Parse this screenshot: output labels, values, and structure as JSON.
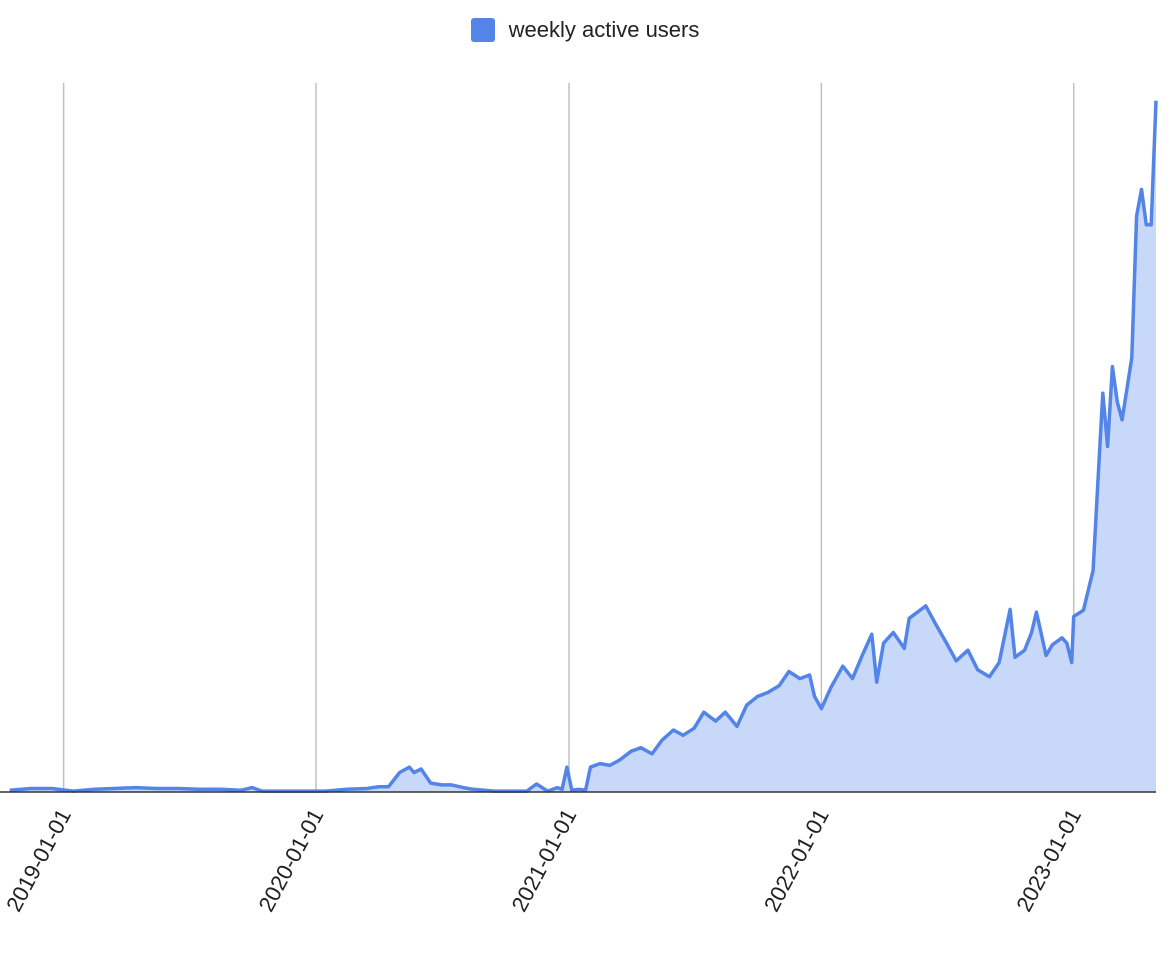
{
  "colors": {
    "line": "#5384e8",
    "fill": "#c8d8f8",
    "grid": "#c0c0c0",
    "baseline": "#333333"
  },
  "chart_data": {
    "type": "area",
    "legend": {
      "label": "weekly active users",
      "position": "top"
    },
    "xlabel": "",
    "ylabel": "",
    "x_ticks": [
      "2019-01-01",
      "2020-01-01",
      "2021-01-01",
      "2022-01-01",
      "2023-01-01"
    ],
    "grid": true,
    "y_axis_labels_visible": false,
    "series": [
      {
        "name": "weekly active users",
        "points": [
          [
            "2018-10-15",
            0.2
          ],
          [
            "2018-11-15",
            0.4
          ],
          [
            "2018-12-15",
            0.4
          ],
          [
            "2019-01-15",
            0.1
          ],
          [
            "2019-02-15",
            0.3
          ],
          [
            "2019-03-15",
            0.4
          ],
          [
            "2019-04-15",
            0.5
          ],
          [
            "2019-05-15",
            0.4
          ],
          [
            "2019-06-15",
            0.4
          ],
          [
            "2019-07-15",
            0.3
          ],
          [
            "2019-08-15",
            0.3
          ],
          [
            "2019-09-15",
            0.2
          ],
          [
            "2019-10-01",
            0.5
          ],
          [
            "2019-10-15",
            0.1
          ],
          [
            "2019-11-15",
            0.1
          ],
          [
            "2019-12-15",
            0.1
          ],
          [
            "2020-01-15",
            0.1
          ],
          [
            "2020-02-15",
            0.3
          ],
          [
            "2020-03-15",
            0.4
          ],
          [
            "2020-04-01",
            0.6
          ],
          [
            "2020-04-15",
            0.6
          ],
          [
            "2020-05-01",
            2.2
          ],
          [
            "2020-05-15",
            2.8
          ],
          [
            "2020-05-22",
            2.2
          ],
          [
            "2020-06-01",
            2.6
          ],
          [
            "2020-06-15",
            1.0
          ],
          [
            "2020-07-01",
            0.8
          ],
          [
            "2020-07-15",
            0.8
          ],
          [
            "2020-08-01",
            0.5
          ],
          [
            "2020-08-15",
            0.3
          ],
          [
            "2020-09-15",
            0.1
          ],
          [
            "2020-10-15",
            0.1
          ],
          [
            "2020-11-01",
            0.1
          ],
          [
            "2020-11-15",
            0.9
          ],
          [
            "2020-12-01",
            0.1
          ],
          [
            "2020-12-15",
            0.5
          ],
          [
            "2020-12-22",
            0.3
          ],
          [
            "2020-12-29",
            2.8
          ],
          [
            "2021-01-05",
            0.2
          ],
          [
            "2021-01-15",
            0.3
          ],
          [
            "2021-01-25",
            0.2
          ],
          [
            "2021-02-01",
            2.8
          ],
          [
            "2021-02-15",
            3.2
          ],
          [
            "2021-03-01",
            3.0
          ],
          [
            "2021-03-15",
            3.6
          ],
          [
            "2021-04-01",
            4.6
          ],
          [
            "2021-04-15",
            5.0
          ],
          [
            "2021-05-01",
            4.3
          ],
          [
            "2021-05-15",
            5.8
          ],
          [
            "2021-06-01",
            7.0
          ],
          [
            "2021-06-15",
            6.4
          ],
          [
            "2021-07-01",
            7.2
          ],
          [
            "2021-07-15",
            9.0
          ],
          [
            "2021-08-01",
            8.0
          ],
          [
            "2021-08-15",
            9.0
          ],
          [
            "2021-09-01",
            7.4
          ],
          [
            "2021-09-15",
            9.8
          ],
          [
            "2021-10-01",
            10.8
          ],
          [
            "2021-10-15",
            11.2
          ],
          [
            "2021-11-01",
            12.0
          ],
          [
            "2021-11-15",
            13.6
          ],
          [
            "2021-12-01",
            12.8
          ],
          [
            "2021-12-15",
            13.2
          ],
          [
            "2021-12-22",
            10.8
          ],
          [
            "2022-01-01",
            9.4
          ],
          [
            "2022-01-15",
            11.8
          ],
          [
            "2022-02-01",
            14.2
          ],
          [
            "2022-02-15",
            12.8
          ],
          [
            "2022-03-01",
            15.4
          ],
          [
            "2022-03-15",
            17.8
          ],
          [
            "2022-03-22",
            12.4
          ],
          [
            "2022-04-01",
            16.8
          ],
          [
            "2022-04-15",
            18.0
          ],
          [
            "2022-05-01",
            16.2
          ],
          [
            "2022-05-08",
            19.6
          ],
          [
            "2022-06-01",
            21.0
          ],
          [
            "2022-06-15",
            19.0
          ],
          [
            "2022-07-01",
            16.8
          ],
          [
            "2022-07-15",
            14.8
          ],
          [
            "2022-08-01",
            16.0
          ],
          [
            "2022-08-15",
            13.8
          ],
          [
            "2022-09-01",
            13.0
          ],
          [
            "2022-09-15",
            14.6
          ],
          [
            "2022-10-01",
            20.6
          ],
          [
            "2022-10-08",
            15.2
          ],
          [
            "2022-10-22",
            16.0
          ],
          [
            "2022-11-01",
            18.0
          ],
          [
            "2022-11-08",
            20.3
          ],
          [
            "2022-11-22",
            15.4
          ],
          [
            "2022-12-01",
            16.6
          ],
          [
            "2022-12-15",
            17.4
          ],
          [
            "2022-12-22",
            16.8
          ],
          [
            "2022-12-29",
            14.6
          ],
          [
            "2023-01-01",
            19.8
          ],
          [
            "2023-01-15",
            20.5
          ],
          [
            "2023-01-29",
            25.0
          ],
          [
            "2023-02-05",
            35.0
          ],
          [
            "2023-02-12",
            45.0
          ],
          [
            "2023-02-19",
            39.0
          ],
          [
            "2023-02-26",
            48.0
          ],
          [
            "2023-03-05",
            44.0
          ],
          [
            "2023-03-12",
            42.0
          ],
          [
            "2023-03-26",
            49.0
          ],
          [
            "2023-04-02",
            65.0
          ],
          [
            "2023-04-09",
            68.0
          ],
          [
            "2023-04-16",
            64.0
          ],
          [
            "2023-04-23",
            64.0
          ],
          [
            "2023-04-30",
            78.0
          ]
        ]
      }
    ]
  }
}
